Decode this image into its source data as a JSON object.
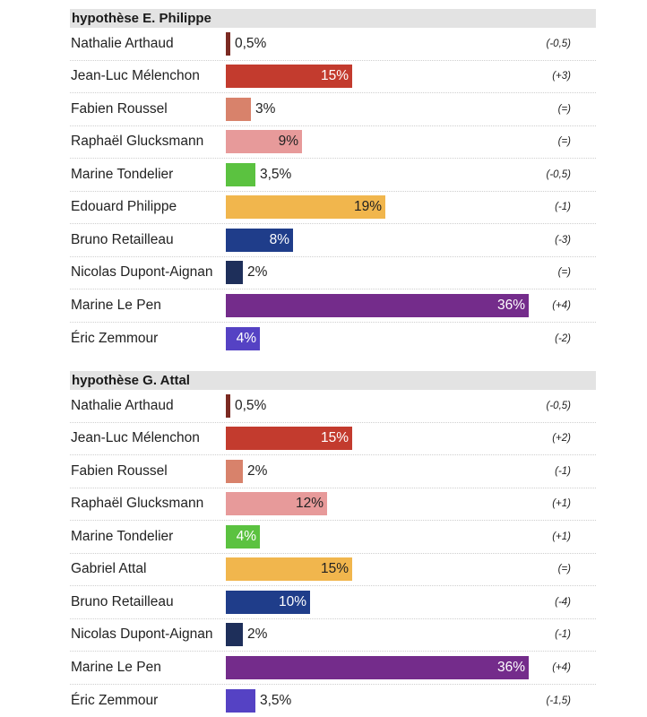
{
  "chart_data": [
    {
      "type": "bar",
      "title": "hypothèse E. Philippe",
      "categories": [
        "Nathalie Arthaud",
        "Jean-Luc Mélenchon",
        "Fabien Roussel",
        "Raphaël Glucksmann",
        "Marine Tondelier",
        "Edouard Philippe",
        "Bruno Retailleau",
        "Nicolas Dupont-Aignan",
        "Marine Le Pen",
        "Éric Zemmour"
      ],
      "values": [
        0.5,
        15,
        3,
        9,
        3.5,
        19,
        8,
        2,
        36,
        4
      ],
      "value_labels": [
        "0,5%",
        "15%",
        "3%",
        "9%",
        "3,5%",
        "19%",
        "8%",
        "2%",
        "36%",
        "4%"
      ],
      "changes": [
        "(-0,5)",
        "(+3)",
        "(=)",
        "(=)",
        "(-0,5)",
        "(-1)",
        "(-3)",
        "(=)",
        "(+4)",
        "(-2)"
      ],
      "colors": [
        "#7b2a22",
        "#c33b2e",
        "#d8826b",
        "#e79a9a",
        "#5bc240",
        "#f1b64d",
        "#1f3d8a",
        "#1e2f5a",
        "#742c8b",
        "#5542c4"
      ],
      "xlim": [
        0,
        36
      ]
    },
    {
      "type": "bar",
      "title": "hypothèse G. Attal",
      "categories": [
        "Nathalie Arthaud",
        "Jean-Luc Mélenchon",
        "Fabien Roussel",
        "Raphaël Glucksmann",
        "Marine Tondelier",
        "Gabriel Attal",
        "Bruno Retailleau",
        "Nicolas Dupont-Aignan",
        "Marine Le Pen",
        "Éric Zemmour"
      ],
      "values": [
        0.5,
        15,
        2,
        12,
        4,
        15,
        10,
        2,
        36,
        3.5
      ],
      "value_labels": [
        "0,5%",
        "15%",
        "2%",
        "12%",
        "4%",
        "15%",
        "10%",
        "2%",
        "36%",
        "3,5%"
      ],
      "changes": [
        "(-0,5)",
        "(+2)",
        "(-1)",
        "(+1)",
        "(+1)",
        "(=)",
        "(-4)",
        "(-1)",
        "(+4)",
        "(-1,5)"
      ],
      "colors": [
        "#7b2a22",
        "#c33b2e",
        "#d8826b",
        "#e79a9a",
        "#5bc240",
        "#f1b64d",
        "#1f3d8a",
        "#1e2f5a",
        "#742c8b",
        "#5542c4"
      ],
      "xlim": [
        0,
        36
      ]
    }
  ]
}
